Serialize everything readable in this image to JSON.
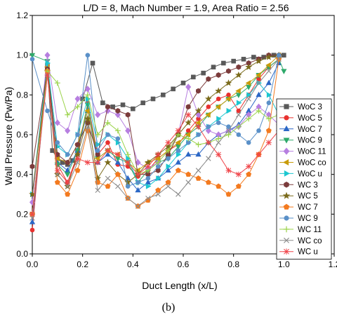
{
  "chart_data": {
    "type": "line",
    "title": "L/D = 8, Mach Number = 1.9, Area Ratio = 2.56",
    "xlabel": "Duct Length (x/L)",
    "ylabel": "Wall Pressure (Pw/Pa)",
    "caption": "(b)",
    "xlim": [
      0.0,
      1.2
    ],
    "ylim": [
      0.0,
      1.2
    ],
    "xticks": [
      "0.0",
      "0.2",
      "0.4",
      "0.6",
      "0.8",
      "1.0",
      "1.2"
    ],
    "yticks": [
      "0.0",
      "0.2",
      "0.4",
      "0.6",
      "0.8",
      "1.0",
      "1.2"
    ],
    "grid": false,
    "legend_position": "right",
    "series": [
      {
        "name": "WoC 3",
        "color": "#595959",
        "marker": "square",
        "x": [
          0,
          0.06,
          0.08,
          0.1,
          0.12,
          0.14,
          0.16,
          0.18,
          0.2,
          0.24,
          0.28,
          0.32,
          0.36,
          0.4,
          0.44,
          0.48,
          0.52,
          0.56,
          0.6,
          0.64,
          0.68,
          0.72,
          0.76,
          0.8,
          0.84,
          0.88,
          0.92,
          0.96,
          1.0
        ],
        "y": [
          0.2,
          0.95,
          0.52,
          0.48,
          0.46,
          0.45,
          0.47,
          0.52,
          0.78,
          0.96,
          0.76,
          0.74,
          0.75,
          0.73,
          0.76,
          0.78,
          0.8,
          0.83,
          0.86,
          0.89,
          0.91,
          0.94,
          0.96,
          0.97,
          0.98,
          0.99,
          0.99,
          1.0,
          1.0
        ]
      },
      {
        "name": "WoC 5",
        "color": "#e8312f",
        "marker": "circle",
        "x": [
          0,
          0.06,
          0.1,
          0.14,
          0.18,
          0.22,
          0.26,
          0.3,
          0.34,
          0.38,
          0.42,
          0.46,
          0.5,
          0.54,
          0.58,
          0.62,
          0.66,
          0.7,
          0.74,
          0.78,
          0.82,
          0.86,
          0.9,
          0.94,
          0.98
        ],
        "y": [
          0.12,
          0.95,
          0.45,
          0.36,
          0.5,
          0.76,
          0.5,
          0.56,
          0.45,
          0.44,
          0.39,
          0.42,
          0.48,
          0.52,
          0.55,
          0.62,
          0.68,
          0.74,
          0.78,
          0.8,
          0.72,
          0.8,
          0.88,
          0.94,
          0.98
        ]
      },
      {
        "name": "WoC 7",
        "color": "#2b67c6",
        "marker": "triangle-up",
        "x": [
          0,
          0.06,
          0.1,
          0.14,
          0.18,
          0.22,
          0.26,
          0.3,
          0.34,
          0.38,
          0.42,
          0.46,
          0.5,
          0.54,
          0.58,
          0.62,
          0.66,
          0.7,
          0.74,
          0.78,
          0.82,
          0.86,
          0.9,
          0.94,
          0.98
        ],
        "y": [
          0.16,
          0.93,
          0.46,
          0.42,
          0.52,
          0.72,
          0.46,
          0.5,
          0.46,
          0.38,
          0.32,
          0.36,
          0.38,
          0.42,
          0.46,
          0.5,
          0.5,
          0.56,
          0.6,
          0.62,
          0.65,
          0.72,
          0.8,
          0.86,
          0.96
        ]
      },
      {
        "name": "WoC 9",
        "color": "#2faa6b",
        "marker": "triangle-down",
        "x": [
          0,
          0.06,
          0.1,
          0.14,
          0.18,
          0.22,
          0.26,
          0.3,
          0.34,
          0.38,
          0.42,
          0.46,
          0.5,
          0.54,
          0.58,
          0.62,
          0.66,
          0.7,
          0.74,
          0.78,
          0.82,
          0.86,
          0.9,
          0.94,
          0.98,
          1.0
        ],
        "y": [
          1.0,
          0.97,
          0.45,
          0.4,
          0.52,
          0.75,
          0.48,
          0.52,
          0.48,
          0.46,
          0.36,
          0.42,
          0.46,
          0.48,
          0.54,
          0.6,
          0.64,
          0.7,
          0.74,
          0.78,
          0.8,
          0.84,
          0.9,
          0.94,
          0.98,
          0.92
        ]
      },
      {
        "name": "WoC 11",
        "color": "#b77fe0",
        "marker": "diamond",
        "x": [
          0,
          0.06,
          0.1,
          0.14,
          0.18,
          0.22,
          0.26,
          0.3,
          0.34,
          0.38,
          0.42,
          0.46,
          0.5,
          0.54,
          0.58,
          0.62,
          0.66,
          0.7,
          0.74,
          0.78,
          0.82,
          0.86,
          0.9,
          0.94,
          0.98
        ],
        "y": [
          0.26,
          1.0,
          0.66,
          0.62,
          0.78,
          0.83,
          0.7,
          0.72,
          0.7,
          0.62,
          0.46,
          0.43,
          0.46,
          0.52,
          0.6,
          0.84,
          0.7,
          0.62,
          0.6,
          0.62,
          0.64,
          0.7,
          0.74,
          0.7,
          0.65
        ]
      },
      {
        "name": "WoC co",
        "color": "#c89b0a",
        "marker": "triangle-left",
        "x": [
          0,
          0.06,
          0.1,
          0.14,
          0.18,
          0.22,
          0.26,
          0.3,
          0.34,
          0.38,
          0.42,
          0.46,
          0.5,
          0.54,
          0.58,
          0.62,
          0.66,
          0.7,
          0.74,
          0.78,
          0.82,
          0.86,
          0.9,
          0.94,
          0.98
        ],
        "y": [
          0.2,
          0.94,
          0.48,
          0.46,
          0.55,
          0.72,
          0.48,
          0.52,
          0.5,
          0.46,
          0.42,
          0.46,
          0.48,
          0.52,
          0.56,
          0.6,
          0.66,
          0.7,
          0.74,
          0.78,
          0.82,
          0.86,
          0.9,
          0.95,
          1.0
        ]
      },
      {
        "name": "WoC u",
        "color": "#1cc7d0",
        "marker": "triangle-right",
        "x": [
          0,
          0.06,
          0.1,
          0.14,
          0.18,
          0.22,
          0.26,
          0.3,
          0.34,
          0.38,
          0.42,
          0.46,
          0.5,
          0.54,
          0.58,
          0.62,
          0.66,
          0.7,
          0.74,
          0.78,
          0.82,
          0.86,
          0.9,
          0.94,
          0.98
        ],
        "y": [
          0.3,
          0.96,
          0.54,
          0.5,
          0.6,
          0.78,
          0.55,
          0.6,
          0.56,
          0.48,
          0.36,
          0.34,
          0.38,
          0.44,
          0.5,
          0.56,
          0.6,
          0.64,
          0.68,
          0.72,
          0.76,
          0.8,
          0.86,
          0.8,
          0.7
        ]
      },
      {
        "name": "WC 3",
        "color": "#7b3b3b",
        "marker": "hexagon",
        "x": [
          0,
          0.06,
          0.1,
          0.14,
          0.18,
          0.22,
          0.26,
          0.3,
          0.34,
          0.38,
          0.42,
          0.46,
          0.5,
          0.54,
          0.58,
          0.62,
          0.66,
          0.7,
          0.74,
          0.78,
          0.82,
          0.86,
          0.9,
          0.94,
          0.98
        ],
        "y": [
          0.44,
          0.93,
          0.5,
          0.46,
          0.55,
          0.66,
          0.5,
          0.74,
          0.72,
          0.7,
          0.4,
          0.4,
          0.42,
          0.5,
          0.6,
          0.74,
          0.82,
          0.88,
          0.9,
          0.92,
          0.94,
          0.96,
          0.98,
          1.0,
          1.0
        ]
      },
      {
        "name": "WC 5",
        "color": "#7a6a1a",
        "marker": "star",
        "x": [
          0,
          0.06,
          0.1,
          0.14,
          0.18,
          0.22,
          0.26,
          0.3,
          0.34,
          0.38,
          0.42,
          0.46,
          0.5,
          0.54,
          0.58,
          0.62,
          0.66,
          0.7,
          0.74,
          0.78,
          0.82,
          0.86,
          0.9,
          0.94,
          0.98
        ],
        "y": [
          0.3,
          0.92,
          0.4,
          0.34,
          0.5,
          0.68,
          0.38,
          0.46,
          0.4,
          0.36,
          0.4,
          0.46,
          0.5,
          0.54,
          0.6,
          0.66,
          0.72,
          0.78,
          0.82,
          0.86,
          0.9,
          0.94,
          0.97,
          0.99,
          1.0
        ]
      },
      {
        "name": "WC 7",
        "color": "#f37a1f",
        "marker": "pentagon",
        "x": [
          0,
          0.06,
          0.1,
          0.14,
          0.18,
          0.22,
          0.26,
          0.3,
          0.34,
          0.38,
          0.42,
          0.46,
          0.5,
          0.54,
          0.58,
          0.62,
          0.66,
          0.7,
          0.74,
          0.78,
          0.82,
          0.86,
          0.9,
          0.94,
          0.98
        ],
        "y": [
          0.2,
          0.92,
          0.36,
          0.3,
          0.42,
          0.62,
          0.36,
          0.34,
          0.4,
          0.28,
          0.24,
          0.27,
          0.32,
          0.36,
          0.42,
          0.4,
          0.38,
          0.36,
          0.34,
          0.3,
          0.34,
          0.4,
          0.5,
          0.62,
          0.98
        ]
      },
      {
        "name": "WC 9",
        "color": "#5a90c8",
        "marker": "circle",
        "x": [
          0,
          0.06,
          0.1,
          0.14,
          0.18,
          0.22,
          0.26,
          0.3,
          0.34,
          0.38,
          0.42,
          0.46,
          0.5,
          0.54,
          0.58,
          0.62,
          0.66,
          0.7,
          0.74,
          0.78,
          0.82,
          0.86,
          0.9,
          0.94,
          0.98
        ],
        "y": [
          0.98,
          0.72,
          0.56,
          0.5,
          0.6,
          1.0,
          0.52,
          0.6,
          0.58,
          0.34,
          0.36,
          0.38,
          0.44,
          0.48,
          0.52,
          0.56,
          0.6,
          0.64,
          0.66,
          0.64,
          0.6,
          0.56,
          0.62,
          0.76,
          1.0
        ]
      },
      {
        "name": "WC 11",
        "color": "#9bd34a",
        "marker": "plus",
        "x": [
          0,
          0.06,
          0.1,
          0.14,
          0.18,
          0.22,
          0.26,
          0.3,
          0.34,
          0.38,
          0.42,
          0.46,
          0.5,
          0.54,
          0.58,
          0.62,
          0.66,
          0.7,
          0.74,
          0.78,
          0.82,
          0.86,
          0.9,
          0.94,
          0.98
        ],
        "y": [
          0.2,
          0.92,
          0.86,
          0.7,
          0.74,
          0.8,
          0.6,
          0.66,
          0.62,
          0.5,
          0.4,
          0.42,
          0.46,
          0.52,
          0.6,
          0.58,
          0.55,
          0.56,
          0.58,
          0.6,
          0.64,
          0.68,
          0.72,
          0.68,
          0.7
        ]
      },
      {
        "name": "WC co",
        "color": "#8c8c8c",
        "marker": "x",
        "x": [
          0,
          0.06,
          0.1,
          0.14,
          0.18,
          0.22,
          0.26,
          0.3,
          0.34,
          0.38,
          0.42,
          0.46,
          0.5,
          0.54,
          0.58,
          0.62,
          0.66,
          0.7,
          0.74,
          0.78,
          0.82,
          0.86,
          0.9,
          0.94,
          0.98
        ],
        "y": [
          0.18,
          0.9,
          0.4,
          0.34,
          0.46,
          0.64,
          0.32,
          0.38,
          0.34,
          0.28,
          0.24,
          0.28,
          0.3,
          0.34,
          0.3,
          0.36,
          0.42,
          0.48,
          0.56,
          0.62,
          0.7,
          0.78,
          0.86,
          0.92,
          0.98
        ]
      },
      {
        "name": "WC u",
        "color": "#f0454a",
        "marker": "asterisk",
        "x": [
          0,
          0.06,
          0.1,
          0.14,
          0.18,
          0.22,
          0.26,
          0.3,
          0.34,
          0.38,
          0.42,
          0.46,
          0.5,
          0.54,
          0.58,
          0.62,
          0.66,
          0.7,
          0.74,
          0.78,
          0.82,
          0.86,
          0.9,
          0.94,
          0.98
        ],
        "y": [
          0.2,
          0.9,
          0.42,
          0.36,
          0.48,
          0.46,
          0.46,
          0.52,
          0.5,
          0.46,
          0.4,
          0.44,
          0.5,
          0.56,
          0.62,
          0.7,
          0.64,
          0.56,
          0.5,
          0.42,
          0.4,
          0.44,
          0.5,
          0.56,
          0.62
        ]
      }
    ]
  }
}
